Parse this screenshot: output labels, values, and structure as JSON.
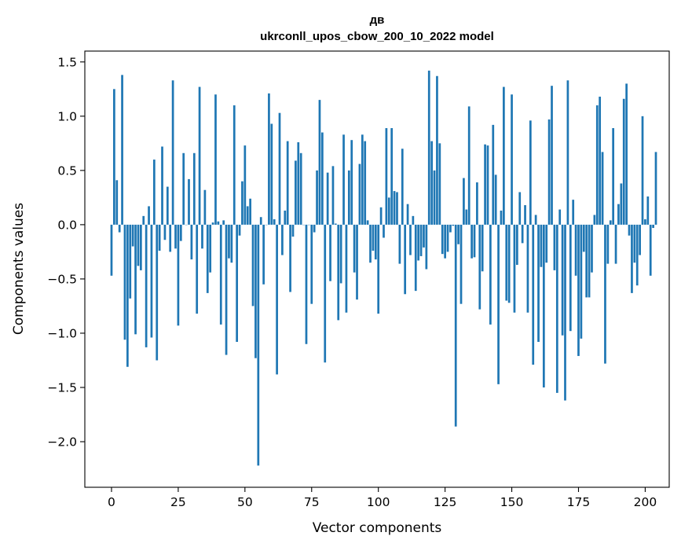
{
  "chart_data": {
    "type": "bar",
    "title": "дв",
    "subtitle": "ukrconll_upos_cbow_200_10_2022 model",
    "xlabel": "Vector components",
    "ylabel": "Components values",
    "xlim": [
      -10,
      209
    ],
    "ylim": [
      -2.42,
      1.6
    ],
    "xticks": [
      0,
      25,
      50,
      75,
      100,
      125,
      150,
      175,
      200
    ],
    "yticks": [
      -2.0,
      -1.5,
      -1.0,
      -0.5,
      0.0,
      0.5,
      1.0,
      1.5
    ],
    "ytick_labels": [
      "−2.0",
      "−1.5",
      "−1.0",
      "−0.5",
      "0.0",
      "0.5",
      "1.0",
      "1.5"
    ],
    "grid": false,
    "bar_color": "#1f77b4",
    "values": [
      -0.47,
      1.25,
      0.41,
      -0.07,
      1.38,
      -1.06,
      -1.31,
      -0.68,
      -0.2,
      -1.01,
      -0.38,
      -0.42,
      0.08,
      -1.13,
      0.17,
      -1.04,
      0.6,
      -1.25,
      -0.24,
      0.72,
      -0.14,
      0.35,
      -0.25,
      1.33,
      -0.22,
      -0.93,
      -0.15,
      0.66,
      0.0,
      0.42,
      -0.32,
      0.66,
      -0.82,
      1.27,
      -0.22,
      0.32,
      -0.63,
      -0.44,
      0.02,
      1.2,
      0.03,
      -0.92,
      0.04,
      -1.2,
      -0.31,
      -0.35,
      1.1,
      -1.08,
      -0.1,
      0.4,
      0.73,
      0.17,
      0.24,
      -0.75,
      -1.23,
      -2.22,
      0.07,
      -0.55,
      0.0,
      1.21,
      0.93,
      0.05,
      -1.38,
      1.03,
      -0.28,
      0.13,
      0.77,
      -0.62,
      -0.11,
      0.59,
      0.76,
      0.66,
      0.0,
      -1.1,
      0.0,
      -0.73,
      -0.07,
      0.5,
      1.15,
      0.85,
      -1.27,
      0.48,
      -0.52,
      0.54,
      0.01,
      -0.88,
      -0.54,
      0.83,
      -0.81,
      0.5,
      0.78,
      -0.44,
      -0.69,
      0.56,
      0.83,
      0.77,
      0.04,
      -0.35,
      -0.24,
      -0.32,
      -0.82,
      0.16,
      -0.12,
      0.89,
      0.25,
      0.89,
      0.31,
      0.3,
      -0.36,
      0.7,
      -0.64,
      0.19,
      -0.28,
      0.08,
      -0.61,
      -0.33,
      -0.29,
      -0.21,
      -0.41,
      1.42,
      0.77,
      0.5,
      1.37,
      0.75,
      -0.27,
      -0.31,
      -0.25,
      -0.07,
      -0.01,
      -1.86,
      -0.18,
      -0.73,
      0.43,
      0.14,
      1.09,
      -0.31,
      -0.3,
      0.39,
      -0.78,
      -0.43,
      0.74,
      0.73,
      -0.92,
      0.92,
      0.46,
      -1.47,
      0.13,
      1.27,
      -0.7,
      -0.72,
      1.2,
      -0.81,
      -0.37,
      0.3,
      -0.17,
      0.18,
      -0.81,
      0.96,
      -1.29,
      0.09,
      -1.08,
      -0.39,
      -1.5,
      -0.35,
      0.97,
      1.28,
      -0.42,
      -1.55,
      0.14,
      -1.02,
      -1.62,
      1.33,
      -0.98,
      0.23,
      -0.47,
      -1.21,
      -1.05,
      -0.25,
      -0.67,
      -0.67,
      -0.44,
      0.09,
      1.1,
      1.18,
      0.67,
      -1.28,
      -0.36,
      0.04,
      0.89,
      -0.36,
      0.19,
      0.38,
      1.16,
      1.3,
      -0.1,
      -0.63,
      -0.35,
      -0.56,
      -0.28,
      1.0,
      0.05,
      0.26,
      -0.47,
      -0.03,
      0.67
    ]
  }
}
